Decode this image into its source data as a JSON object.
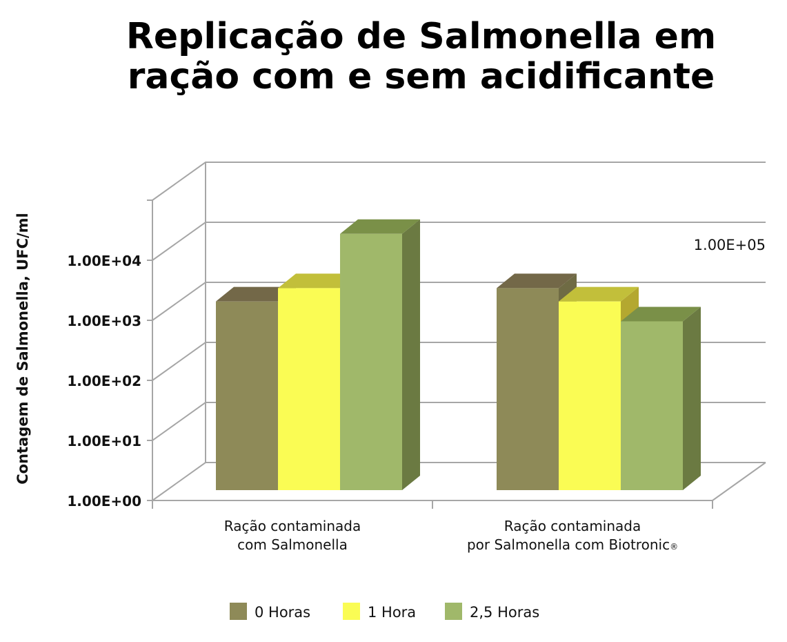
{
  "chart_data": {
    "type": "bar",
    "title": "Replicação de Salmonella em ração com e sem acidificante",
    "title_lines": [
      "Replicação de Salmonella em",
      "ração com e sem acidificante"
    ],
    "ylabel": "Contagem de Salmonella, UFC/ml",
    "xlabel": "",
    "yscale": "log",
    "ylim": [
      1,
      100000
    ],
    "ytick_labels": [
      "1.00E+00",
      "1.00E+01",
      "1.00E+02",
      "1.00E+03",
      "1.00E+04",
      "1.00E+05"
    ],
    "categories": [
      {
        "line1": "Ração contaminada",
        "line2": "com Salmonella",
        "mark": ""
      },
      {
        "line1": "Ração contaminada",
        "line2": "por Salmonella com Biotronic",
        "mark": "®"
      }
    ],
    "series": [
      {
        "name": "0 Horas",
        "values": [
          1500,
          2500
        ],
        "color": "#8e8a58",
        "side": "#6f6b44",
        "top": "#736848"
      },
      {
        "name": "1 Hora",
        "values": [
          2500,
          1500
        ],
        "color": "#fafc54",
        "side": "#b4a830",
        "top": "#c2bf3a"
      },
      {
        "name": "2,5 Horas",
        "values": [
          20000,
          700
        ],
        "color": "#a0b86a",
        "side": "#6b7a42",
        "top": "#7a9048"
      }
    ],
    "grid": true,
    "legend_position": "bottom",
    "chart_style": "3d-clustered-column"
  }
}
